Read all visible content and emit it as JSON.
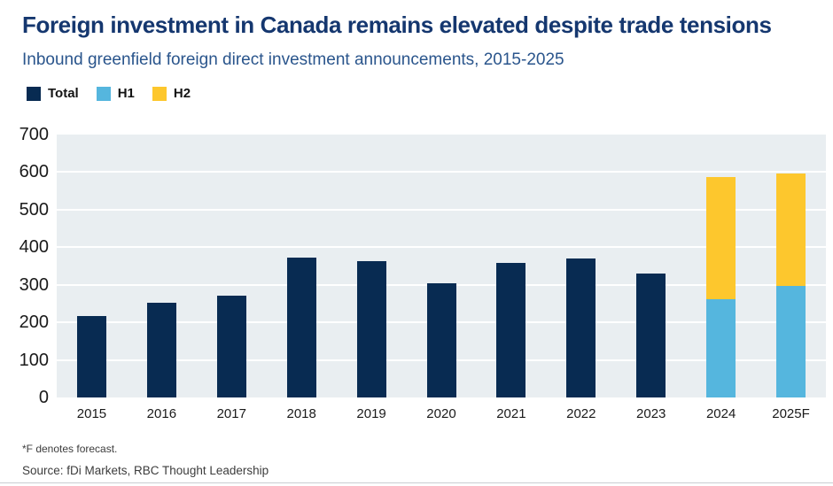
{
  "header": {
    "title": "Foreign investment in Canada remains elevated despite trade tensions",
    "subtitle": "Inbound greenfield foreign direct investment announcements, 2015-2025"
  },
  "legend": [
    {
      "label": "Total",
      "color": "#082B52"
    },
    {
      "label": "H1",
      "color": "#55B6DE"
    },
    {
      "label": "H2",
      "color": "#FDC72D"
    }
  ],
  "footer": {
    "footnote": "*F denotes forecast.",
    "source": "Source: fDi Markets, RBC Thought Leadership"
  },
  "colors": {
    "title_navy": "#15376F",
    "subtitle_blue": "#2A558C",
    "bar_navy": "#082B52",
    "bar_light_blue": "#55B6DE",
    "bar_yellow": "#FDC72D",
    "plot_background": "#E9EEF1",
    "gridline": "#FFFFFF",
    "axis_text": "#1A1A1A"
  },
  "chart_data": {
    "type": "bar",
    "title": "Foreign investment in Canada remains elevated despite trade tensions",
    "subtitle": "Inbound greenfield foreign direct investment announcements, 2015-2025",
    "categories": [
      "2015",
      "2016",
      "2017",
      "2018",
      "2019",
      "2020",
      "2021",
      "2022",
      "2023",
      "2024",
      "2025F"
    ],
    "series": [
      {
        "name": "Total",
        "color": "#082B52",
        "values": [
          218,
          253,
          272,
          373,
          362,
          304,
          359,
          371,
          330,
          null,
          null
        ]
      },
      {
        "name": "H1",
        "color": "#55B6DE",
        "values": [
          null,
          null,
          null,
          null,
          null,
          null,
          null,
          null,
          null,
          262,
          297
        ]
      },
      {
        "name": "H2",
        "color": "#FDC72D",
        "values": [
          null,
          null,
          null,
          null,
          null,
          null,
          null,
          null,
          null,
          325,
          300
        ]
      }
    ],
    "stacked_totals": [
      218,
      253,
      272,
      373,
      362,
      304,
      359,
      371,
      330,
      587,
      597
    ],
    "xlabel": "",
    "ylabel": "",
    "ylim": [
      0,
      700
    ],
    "yticks": [
      0,
      100,
      200,
      300,
      400,
      500,
      600,
      700
    ],
    "grid": true,
    "legend_position": "top-left"
  }
}
